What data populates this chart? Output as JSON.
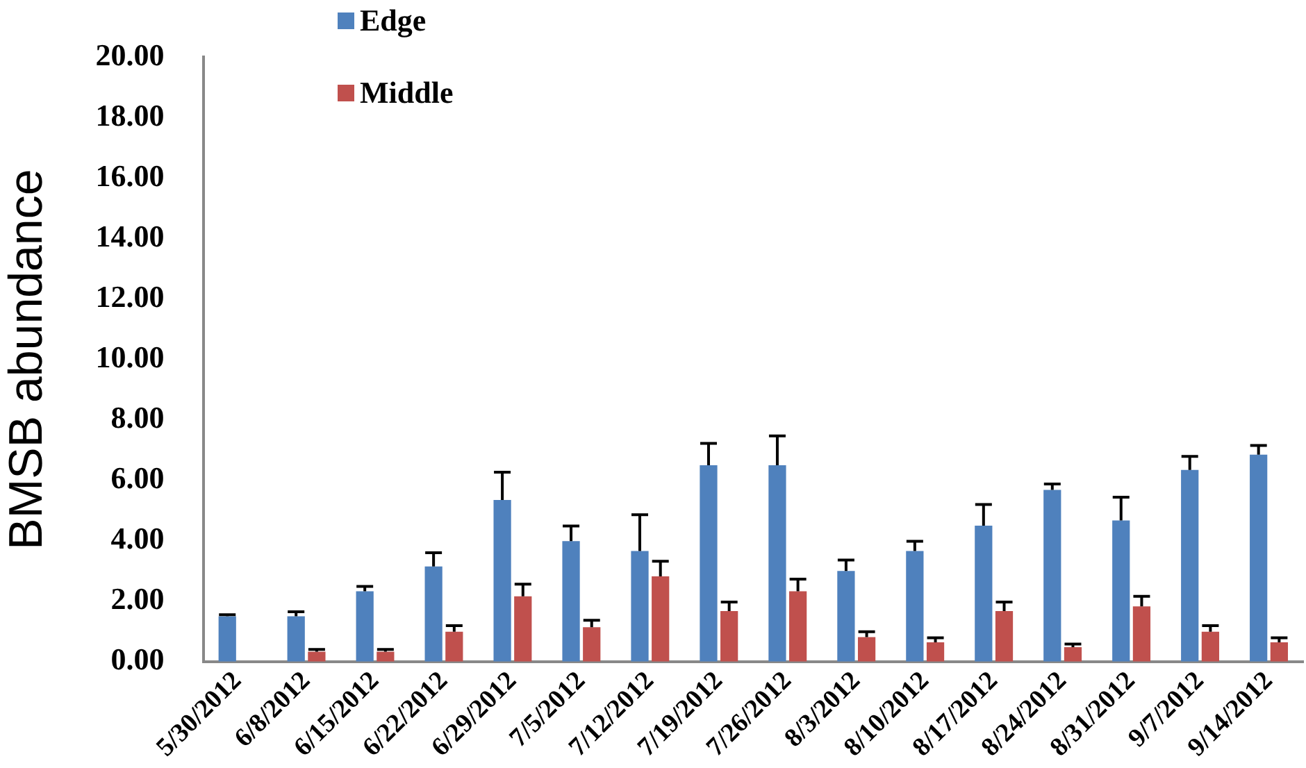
{
  "chart_data": {
    "type": "bar",
    "ylabel": "BMSB abundance",
    "categories": [
      "5/30/2012",
      "6/8/2012",
      "6/15/2012",
      "6/22/2012",
      "6/29/2012",
      "7/5/2012",
      "7/12/2012",
      "7/19/2012",
      "7/26/2012",
      "8/3/2012",
      "8/10/2012",
      "8/17/2012",
      "8/24/2012",
      "8/31/2012",
      "9/7/2012",
      "9/14/2012"
    ],
    "series": [
      {
        "name": "Edge",
        "color": "#4f81bd",
        "values": [
          1.5,
          1.5,
          2.33,
          3.15,
          5.35,
          3.99,
          3.66,
          6.5,
          6.5,
          3.0,
          3.66,
          4.5,
          5.68,
          4.67,
          6.34,
          6.85
        ],
        "errors": [
          [
            1.5,
            1.55
          ],
          [
            1.5,
            1.65
          ],
          [
            2.33,
            2.49
          ],
          [
            3.15,
            3.6
          ],
          [
            5.35,
            6.27
          ],
          [
            3.99,
            4.49
          ],
          [
            3.66,
            4.86
          ],
          [
            6.5,
            7.22
          ],
          [
            6.5,
            7.47
          ],
          [
            3.0,
            3.36
          ],
          [
            3.66,
            3.98
          ],
          [
            4.5,
            5.2
          ],
          [
            5.68,
            5.88
          ],
          [
            4.67,
            5.44
          ],
          [
            6.34,
            6.79
          ],
          [
            6.85,
            7.15
          ]
        ]
      },
      {
        "name": "Middle",
        "color": "#c0504d",
        "values": [
          null,
          0.33,
          0.33,
          0.99,
          2.16,
          1.14,
          2.82,
          1.67,
          2.33,
          0.81,
          0.64,
          1.67,
          0.48,
          1.83,
          0.99,
          0.64
        ],
        "errors": [
          null,
          [
            0.33,
            0.4
          ],
          [
            0.33,
            0.4
          ],
          [
            0.99,
            1.19
          ],
          [
            2.16,
            2.56
          ],
          [
            1.14,
            1.37
          ],
          [
            2.82,
            3.32
          ],
          [
            1.67,
            1.97
          ],
          [
            2.33,
            2.73
          ],
          [
            0.81,
            0.99
          ],
          [
            0.64,
            0.79
          ],
          [
            1.67,
            1.97
          ],
          [
            0.48,
            0.58
          ],
          [
            1.83,
            2.16
          ],
          [
            0.99,
            1.19
          ],
          [
            0.64,
            0.79
          ]
        ]
      }
    ],
    "ylim": [
      0,
      20
    ],
    "yticks": [
      {
        "value": 0,
        "label": "0.00"
      },
      {
        "value": 2,
        "label": "2.00"
      },
      {
        "value": 4,
        "label": "4.00"
      },
      {
        "value": 6,
        "label": "6.00"
      },
      {
        "value": 8,
        "label": "8.00"
      },
      {
        "value": 10,
        "label": "10.00"
      },
      {
        "value": 12,
        "label": "12.00"
      },
      {
        "value": 14,
        "label": "14.00"
      },
      {
        "value": 16,
        "label": "16.00"
      },
      {
        "value": 18,
        "label": "18.00"
      },
      {
        "value": 20,
        "label": "20.00"
      }
    ],
    "grid": false,
    "legend": "top"
  }
}
